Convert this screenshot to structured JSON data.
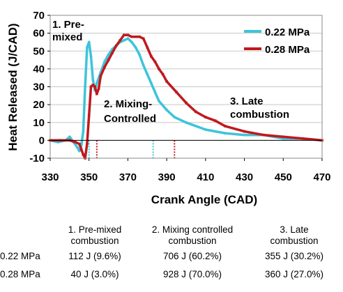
{
  "chart_data": {
    "type": "line",
    "xlabel": "Crank Angle (CAD)",
    "ylabel": "Heat Released (J/CAD)",
    "xlim": [
      330,
      470
    ],
    "ylim": [
      -10,
      70
    ],
    "xticks": [
      330,
      350,
      370,
      390,
      410,
      430,
      450,
      470
    ],
    "yticks": [
      -10,
      0,
      10,
      20,
      30,
      40,
      50,
      60,
      70
    ],
    "grid": true,
    "legend_position": "top-right",
    "series": [
      {
        "name": "0.22 MPa",
        "color": "#3ec4d9",
        "marker": "dots",
        "x": [
          330,
          334,
          338,
          340,
          342,
          344,
          345,
          346,
          347,
          348,
          349,
          350,
          351,
          352,
          353,
          354,
          356,
          358,
          360,
          362,
          364,
          366,
          368,
          370,
          372,
          374,
          376,
          378,
          380,
          382,
          384,
          386,
          390,
          394,
          400,
          410,
          420,
          430,
          440,
          450,
          460,
          470
        ],
        "y": [
          0,
          -1,
          0,
          2,
          -1,
          -4,
          -6,
          -3,
          5,
          30,
          52,
          55,
          47,
          34,
          28,
          32,
          38,
          44,
          48,
          51,
          53,
          55,
          56,
          57,
          55,
          52,
          48,
          42,
          37,
          32,
          27,
          22,
          17,
          13,
          10,
          6,
          4,
          3,
          3,
          1,
          1,
          0
        ]
      },
      {
        "name": "0.28 MPa",
        "color": "#c0191e",
        "marker": "squares",
        "x": [
          330,
          335,
          340,
          343,
          345,
          346,
          347,
          348,
          349,
          350,
          351,
          352,
          353,
          354,
          355,
          356,
          358,
          360,
          362,
          364,
          366,
          368,
          370,
          372,
          374,
          376,
          378,
          380,
          382,
          384,
          386,
          388,
          390,
          395,
          400,
          405,
          410,
          415,
          420,
          430,
          440,
          450,
          460,
          470
        ],
        "y": [
          0,
          0,
          0,
          -1,
          -2,
          -5,
          -8,
          -10,
          -2,
          14,
          30,
          31,
          30,
          26,
          29,
          36,
          41,
          45,
          49,
          53,
          56,
          59,
          59,
          58,
          58,
          58,
          57,
          52,
          47,
          44,
          40,
          37,
          33,
          27,
          21,
          16,
          13,
          11,
          8,
          5,
          3,
          2,
          1,
          0
        ]
      }
    ],
    "vlines": [
      {
        "x": 350,
        "color": "#3ec4d9"
      },
      {
        "x": 354,
        "color": "#c0191e"
      },
      {
        "x": 383,
        "color": "#3ec4d9"
      },
      {
        "x": 394,
        "color": "#c0191e"
      }
    ],
    "annotations": [
      {
        "lines": [
          "1. Pre-",
          "mixed"
        ]
      },
      {
        "lines": [
          "2. Mixing-",
          "Controlled"
        ]
      },
      {
        "lines": [
          "3. Late",
          "combustion"
        ]
      }
    ]
  },
  "table": {
    "headers": [
      [
        "1. Pre-mixed",
        "combustion"
      ],
      [
        "2. Mixing controlled",
        "combustion"
      ],
      [
        "3. Late",
        "combustion"
      ]
    ],
    "rows": [
      {
        "label": "0.22 MPa",
        "values": [
          "112 J (9.6%)",
          "706 J  (60.2%)",
          "355 J (30.2%)"
        ]
      },
      {
        "label": "0.28 MPa",
        "values": [
          "40 J (3.0%)",
          "928 J  (70.0%)",
          "360 J (27.0%)"
        ]
      }
    ]
  }
}
